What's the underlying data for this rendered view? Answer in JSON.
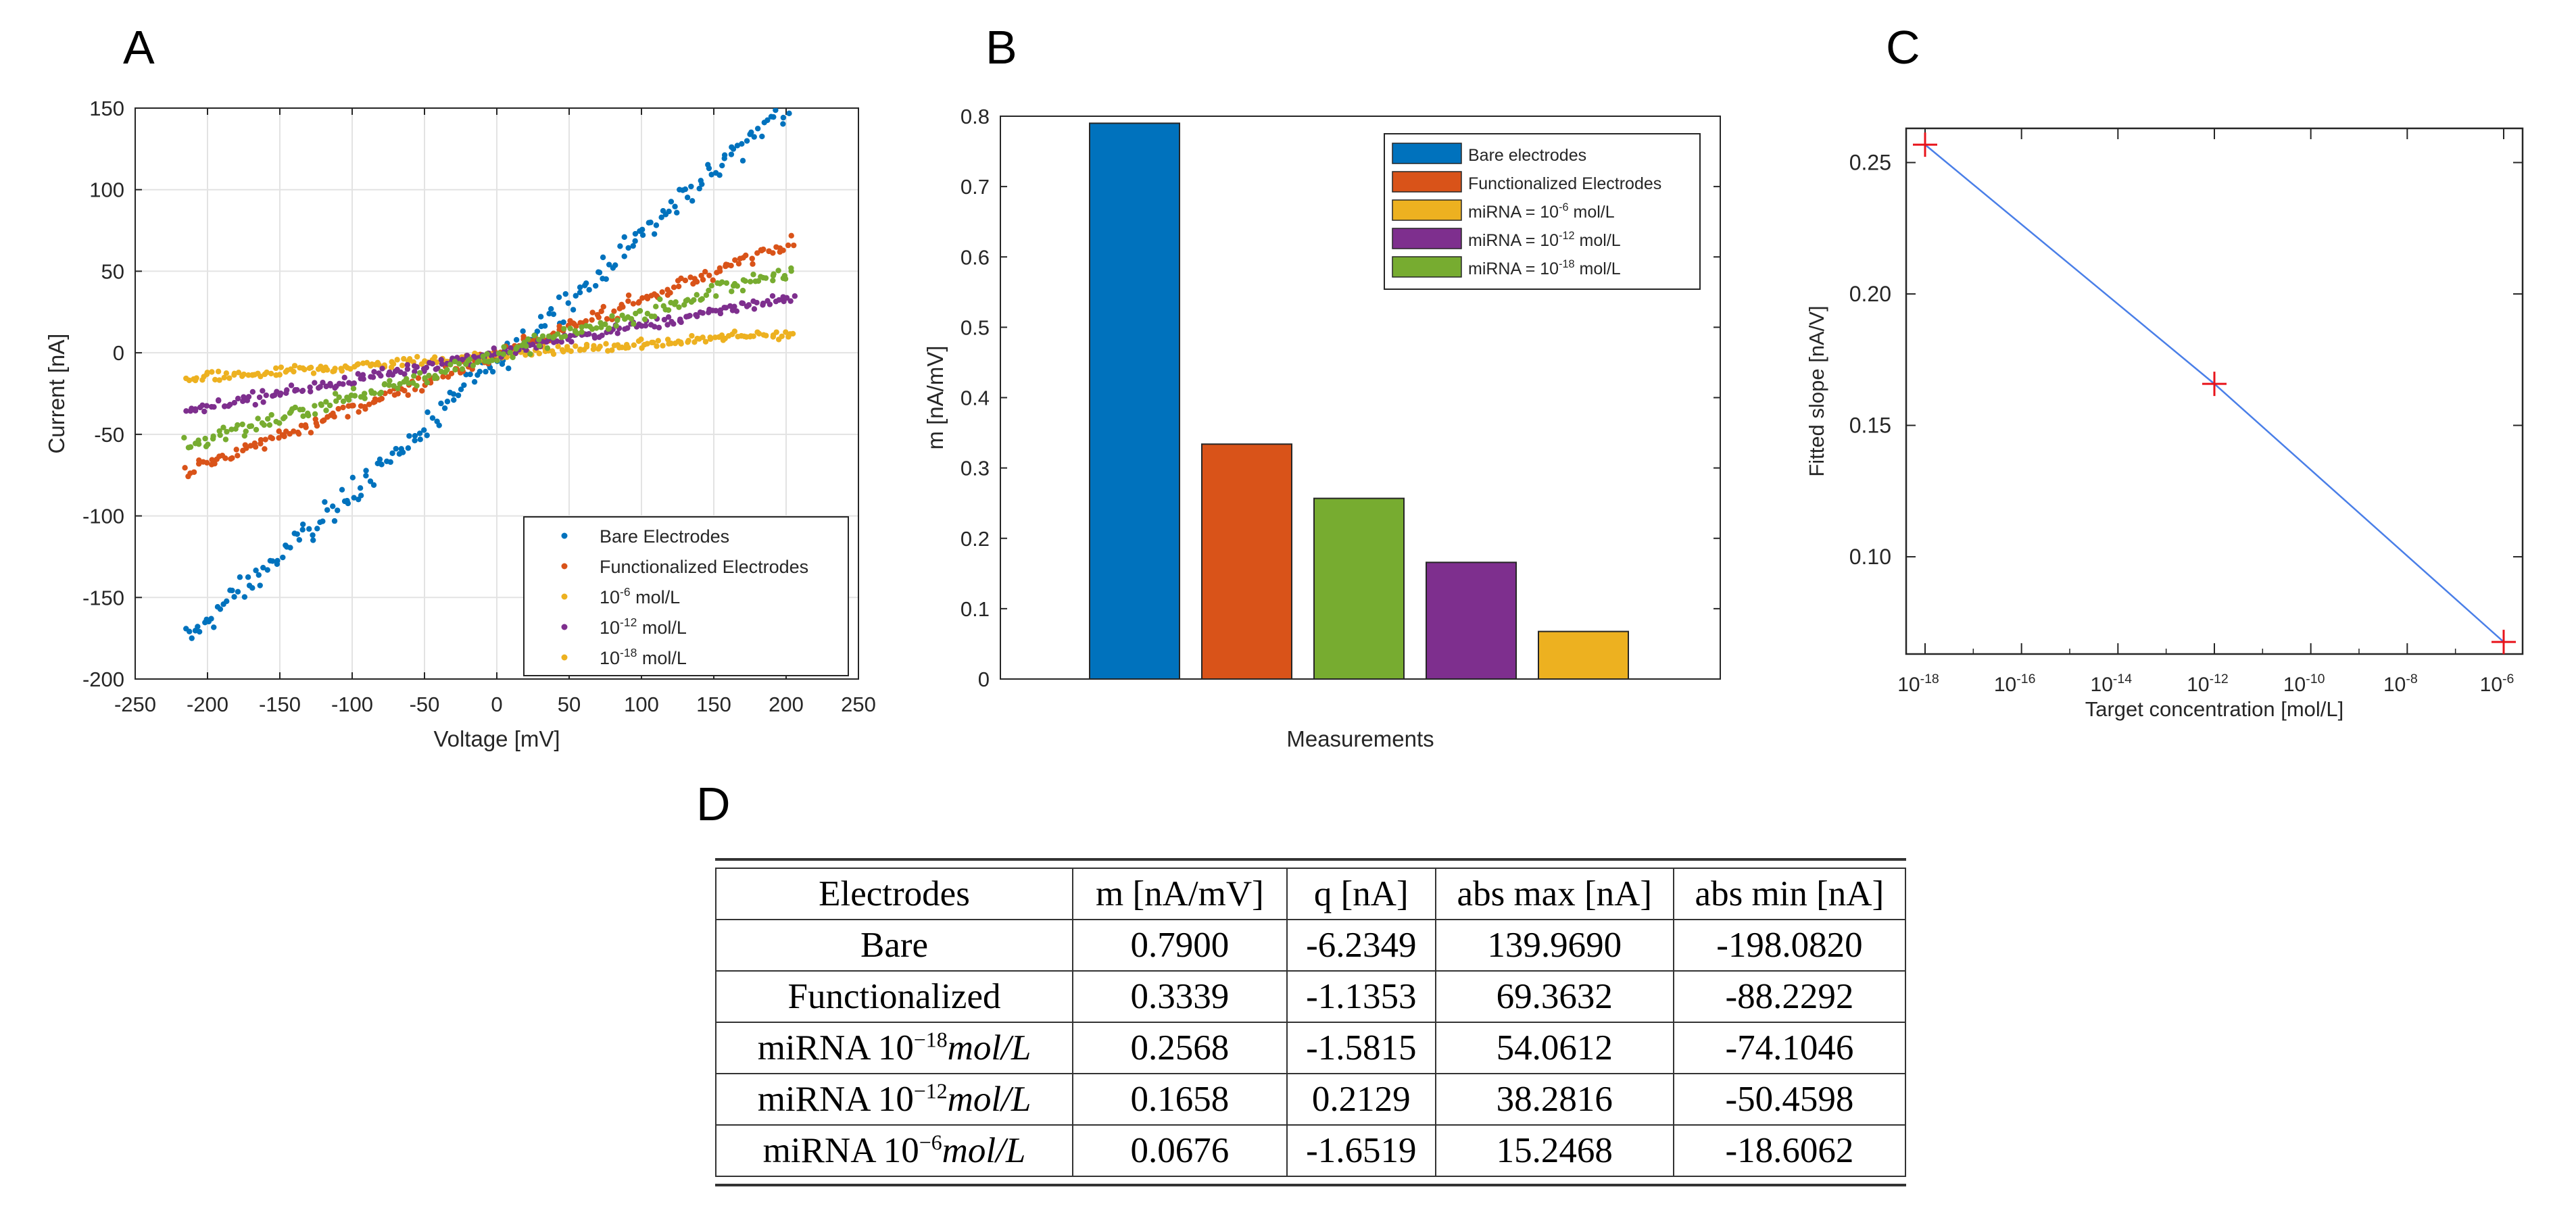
{
  "panels": {
    "a": "A",
    "b": "B",
    "c": "C",
    "d": "D"
  },
  "chart_data": [
    {
      "type": "scatter",
      "panel": "A",
      "xlabel": "Voltage [mV]",
      "ylabel": "Current [nA]",
      "xlim": [
        -250,
        250
      ],
      "ylim": [
        -200,
        150
      ],
      "xticks": [
        -250,
        -200,
        -150,
        -100,
        -50,
        0,
        50,
        100,
        150,
        200,
        250
      ],
      "yticks": [
        -200,
        -150,
        -100,
        -50,
        0,
        50,
        100,
        150
      ],
      "grid": true,
      "legend_position": "bottom-right",
      "x_range": [
        -215,
        205
      ],
      "series": [
        {
          "name": "Bare Electrodes",
          "slope": 0.79,
          "intercept": -6.2349,
          "noise": 7,
          "color": "#0072BD",
          "legend_sup": "",
          "legend_suffix": ""
        },
        {
          "name": "Functionalized Electrodes",
          "slope": 0.3339,
          "intercept": -1.1353,
          "noise": 4,
          "color": "#D95319",
          "legend_sup": "",
          "legend_suffix": ""
        },
        {
          "name": "10",
          "slope": 0.0676,
          "intercept": -1.6519,
          "noise": 2.5,
          "color": "#EDB120",
          "legend_sup": "-6",
          "legend_suffix": " mol/L"
        },
        {
          "name": "10",
          "slope": 0.1658,
          "intercept": 0.2129,
          "noise": 3,
          "color": "#7E2F8E",
          "legend_sup": "-12",
          "legend_suffix": " mol/L"
        },
        {
          "name": "10",
          "slope": 0.2568,
          "intercept": -1.5815,
          "noise": 4,
          "color": "#77AC30",
          "legend_sup": "-18",
          "legend_suffix": " mol/L",
          "marker_color": "#77AC30",
          "legend_marker_color": "#EDB120"
        }
      ]
    },
    {
      "type": "bar",
      "panel": "B",
      "xlabel": "Measurements",
      "ylabel": "m [nA/mV]",
      "ylim": [
        0,
        0.8
      ],
      "yticks": [
        0,
        0.1,
        0.2,
        0.3,
        0.4,
        0.5,
        0.6,
        0.7,
        0.8
      ],
      "legend_position": "top-right",
      "values": [
        0.79,
        0.3339,
        0.2568,
        0.1658,
        0.0676
      ],
      "bar_colors": [
        "#0072BD",
        "#D95319",
        "#77AC30",
        "#7E2F8E",
        "#EDB120"
      ],
      "legend": [
        {
          "label": "Bare electrodes",
          "sup": "",
          "suffix": "",
          "color": "#0072BD"
        },
        {
          "label": "Functionalized Electrodes",
          "sup": "",
          "suffix": "",
          "color": "#D95319"
        },
        {
          "label": "miRNA = 10",
          "sup": "-6",
          "suffix": " mol/L",
          "color": "#EDB120"
        },
        {
          "label": "miRNA = 10",
          "sup": "-12",
          "suffix": " mol/L",
          "color": "#7E2F8E"
        },
        {
          "label": "miRNA = 10",
          "sup": "-18",
          "suffix": " mol/L",
          "color": "#77AC30"
        }
      ]
    },
    {
      "type": "line",
      "panel": "C",
      "xlabel": "Target concentration [mol/L]",
      "ylabel": "Fitted slope [nA/V]",
      "x_scale": "log",
      "xlim": [
        1e-18,
        1e-06
      ],
      "ylim": [
        0.063,
        0.263
      ],
      "yticks": [
        0.1,
        0.15,
        0.2,
        0.25
      ],
      "ytick_labels": [
        "0.10",
        "0.15",
        "0.20",
        "0.25"
      ],
      "xtick_exponents": [
        -18,
        -16,
        -14,
        -12,
        -10,
        -8,
        -6
      ],
      "xtick_base": "10",
      "x": [
        1e-18,
        1e-12,
        1e-06
      ],
      "y": [
        0.2568,
        0.1658,
        0.0676
      ],
      "line_color": "#4A7FE8",
      "marker_color": "#E8141B"
    }
  ],
  "table": {
    "headers": [
      "Electrodes",
      "m [nA/mV]",
      "q [nA]",
      "abs max [nA]",
      "abs min [nA]"
    ],
    "rows": [
      {
        "name": "Bare",
        "sup": "",
        "unit": "",
        "m": "0.7900",
        "q": "-6.2349",
        "max": "139.9690",
        "min": "-198.0820"
      },
      {
        "name": "Functionalized",
        "sup": "",
        "unit": "",
        "m": "0.3339",
        "q": "-1.1353",
        "max": "69.3632",
        "min": "-88.2292"
      },
      {
        "name": "miRNA 10",
        "sup": "−18",
        "unit": "mol/L",
        "m": "0.2568",
        "q": "-1.5815",
        "max": "54.0612",
        "min": "-74.1046"
      },
      {
        "name": "miRNA 10",
        "sup": "−12",
        "unit": "mol/L",
        "m": "0.1658",
        "q": "0.2129",
        "max": "38.2816",
        "min": "-50.4598"
      },
      {
        "name": "miRNA 10",
        "sup": "−6",
        "unit": "mol/L",
        "m": "0.0676",
        "q": "-1.6519",
        "max": "15.2468",
        "min": "-18.6062"
      }
    ]
  }
}
